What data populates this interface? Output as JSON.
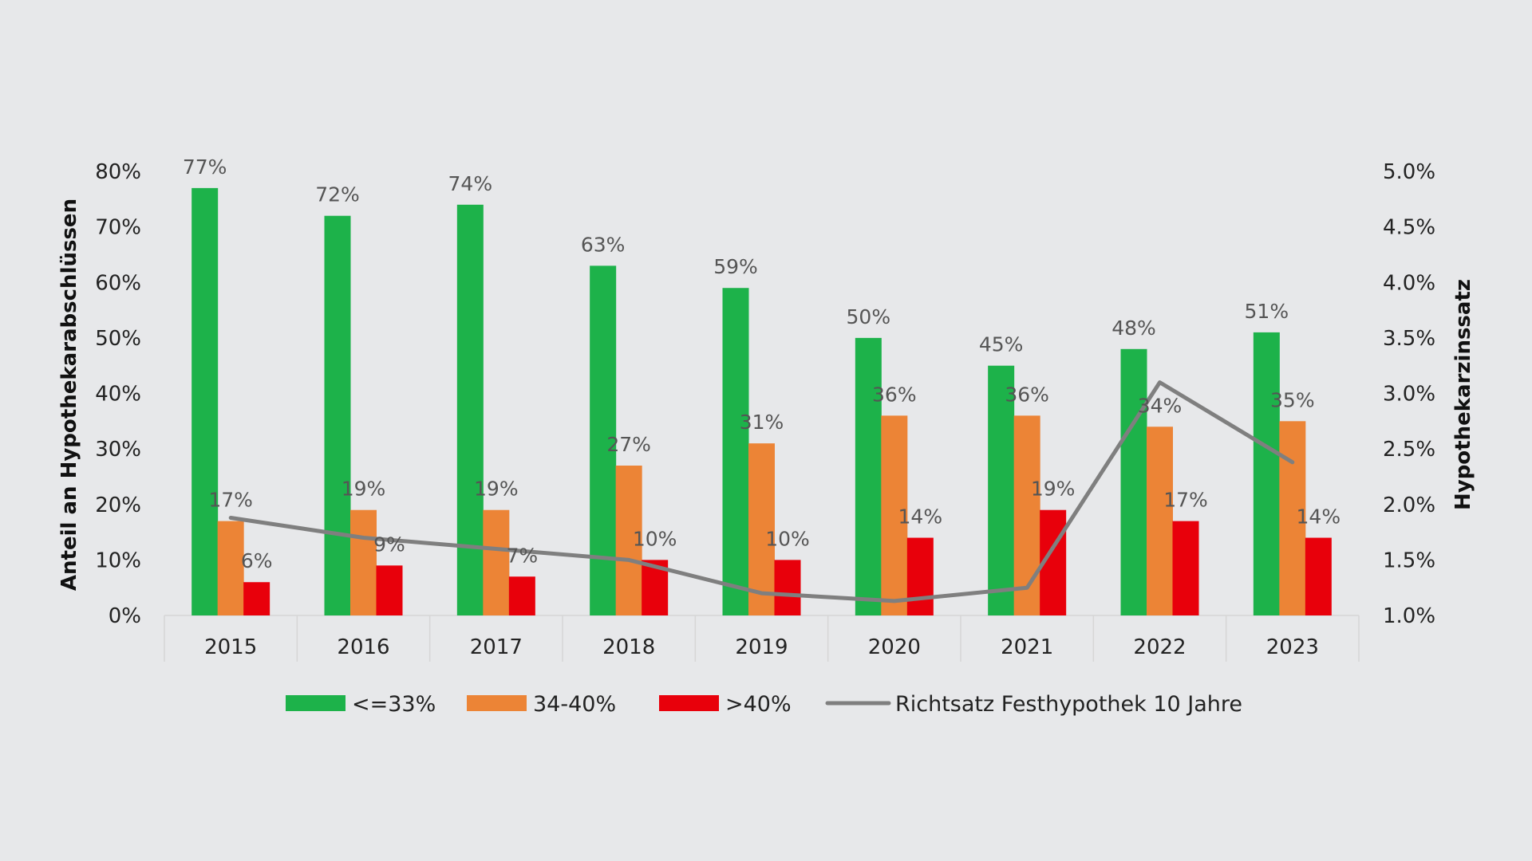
{
  "chart_data": {
    "type": "bar",
    "categories": [
      "2015",
      "2016",
      "2017",
      "2018",
      "2019",
      "2020",
      "2021",
      "2022",
      "2023"
    ],
    "series": [
      {
        "name": "<=33%",
        "values": [
          77,
          72,
          74,
          63,
          59,
          50,
          45,
          48,
          51
        ],
        "labels": [
          "77%",
          "72%",
          "74%",
          "63%",
          "59%",
          "50%",
          "45%",
          "48%",
          "51%"
        ],
        "color": "#1db24a"
      },
      {
        "name": "34-40%",
        "values": [
          17,
          19,
          19,
          27,
          31,
          36,
          36,
          34,
          35
        ],
        "labels": [
          "17%",
          "19%",
          "19%",
          "27%",
          "31%",
          "36%",
          "36%",
          "34%",
          "35%"
        ],
        "color": "#ec8436"
      },
      {
        "name": ">40%",
        "values": [
          6,
          9,
          7,
          10,
          10,
          14,
          19,
          17,
          14
        ],
        "labels": [
          "6%",
          "9%",
          "7%",
          "10%",
          "10%",
          "14%",
          "19%",
          "17%",
          "14%"
        ],
        "color": "#e8000b"
      }
    ],
    "line_series": {
      "name": "Richtsatz Festhypothek 10 Jahre",
      "values": [
        1.88,
        1.7,
        1.6,
        1.5,
        1.2,
        1.13,
        1.25,
        3.1,
        2.38
      ],
      "color": "#7f7f7f",
      "axis": "right"
    },
    "ylabel": "Anteil an Hypothekarabschlüssen",
    "ylabel_right": "Hypothekarzinssatz",
    "ylim": [
      0,
      80
    ],
    "yticks": [
      "0%",
      "10%",
      "20%",
      "30%",
      "40%",
      "50%",
      "60%",
      "70%",
      "80%"
    ],
    "ylim_right": [
      1.0,
      5.0
    ],
    "yticks_right": [
      "1.0%",
      "1.5%",
      "2.0%",
      "2.5%",
      "3.0%",
      "3.5%",
      "4.0%",
      "4.5%",
      "5.0%"
    ],
    "legend_position": "bottom",
    "grid": false
  }
}
